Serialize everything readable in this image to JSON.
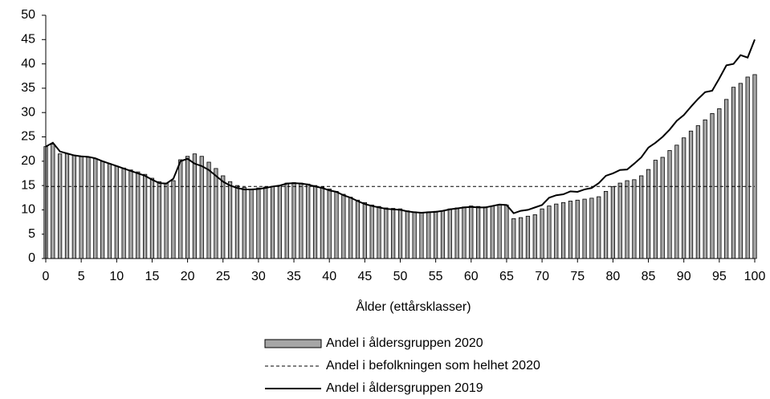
{
  "chart_data": {
    "type": "bar",
    "x_label": "Ålder (ettårsklasser)",
    "x": [
      0,
      1,
      2,
      3,
      4,
      5,
      6,
      7,
      8,
      9,
      10,
      11,
      12,
      13,
      14,
      15,
      16,
      17,
      18,
      19,
      20,
      21,
      22,
      23,
      24,
      25,
      26,
      27,
      28,
      29,
      30,
      31,
      32,
      33,
      34,
      35,
      36,
      37,
      38,
      39,
      40,
      41,
      42,
      43,
      44,
      45,
      46,
      47,
      48,
      49,
      50,
      51,
      52,
      53,
      54,
      55,
      56,
      57,
      58,
      59,
      60,
      61,
      62,
      63,
      64,
      65,
      66,
      67,
      68,
      69,
      70,
      71,
      72,
      73,
      74,
      75,
      76,
      77,
      78,
      79,
      80,
      81,
      82,
      83,
      84,
      85,
      86,
      87,
      88,
      89,
      90,
      91,
      92,
      93,
      94,
      95,
      96,
      97,
      98,
      99,
      100
    ],
    "series": [
      {
        "name": "Andel i åldersgruppen 2020",
        "kind": "bar",
        "color": "#a6a6a6",
        "values": [
          23.0,
          23.5,
          21.5,
          21.5,
          21.2,
          21.0,
          20.8,
          20.5,
          20.0,
          19.5,
          19.0,
          18.6,
          18.2,
          17.8,
          17.3,
          16.5,
          15.8,
          15.5,
          16.0,
          20.3,
          21.0,
          21.5,
          21.0,
          19.8,
          18.5,
          17.0,
          15.8,
          15.0,
          14.6,
          14.3,
          14.5,
          14.7,
          14.8,
          15.0,
          15.5,
          15.6,
          15.5,
          15.3,
          15.0,
          14.7,
          14.3,
          13.8,
          13.2,
          12.6,
          12.0,
          11.5,
          11.0,
          10.7,
          10.4,
          10.3,
          10.2,
          9.8,
          9.6,
          9.5,
          9.6,
          9.7,
          9.8,
          10.2,
          10.4,
          10.6,
          10.8,
          10.7,
          10.6,
          10.8,
          11.0,
          11.0,
          8.2,
          8.4,
          8.7,
          9.0,
          10.2,
          10.8,
          11.2,
          11.5,
          11.8,
          12.0,
          12.2,
          12.4,
          12.7,
          13.8,
          14.8,
          15.5,
          16.0,
          16.2,
          17.0,
          18.3,
          20.2,
          20.8,
          22.2,
          23.3,
          24.8,
          26.2,
          27.3,
          28.5,
          29.8,
          30.8,
          32.7,
          35.2,
          36.0,
          37.3,
          37.8
        ]
      },
      {
        "name": "Andel i befolkningen som helhet 2020",
        "kind": "reference",
        "color": "#000000",
        "dashed": true,
        "value": 14.8
      },
      {
        "name": "Andel i åldersgruppen 2019",
        "kind": "line",
        "color": "#000000",
        "values": [
          23.0,
          23.8,
          22.0,
          21.6,
          21.2,
          21.0,
          20.9,
          20.6,
          20.0,
          19.5,
          19.0,
          18.5,
          18.0,
          17.5,
          17.0,
          16.2,
          15.5,
          15.4,
          16.4,
          20.0,
          20.5,
          19.5,
          19.0,
          18.2,
          17.0,
          15.8,
          15.0,
          14.5,
          14.2,
          14.2,
          14.3,
          14.5,
          14.8,
          15.0,
          15.4,
          15.5,
          15.4,
          15.2,
          14.8,
          14.5,
          14.0,
          13.7,
          13.0,
          12.5,
          11.8,
          11.2,
          10.8,
          10.5,
          10.2,
          10.1,
          10.0,
          9.7,
          9.5,
          9.4,
          9.5,
          9.6,
          9.8,
          10.1,
          10.3,
          10.5,
          10.6,
          10.5,
          10.5,
          10.8,
          11.1,
          11.0,
          9.3,
          9.8,
          10.0,
          10.5,
          11.0,
          12.5,
          13.0,
          13.2,
          13.8,
          13.7,
          14.2,
          14.5,
          15.5,
          17.0,
          17.5,
          18.2,
          18.3,
          19.5,
          20.8,
          22.8,
          23.8,
          25.0,
          26.5,
          28.3,
          29.5,
          31.2,
          32.8,
          34.2,
          34.5,
          37.0,
          39.7,
          40.0,
          41.8,
          41.3,
          45.0
        ]
      }
    ],
    "xlim": [
      0,
      100
    ],
    "xticks": [
      0,
      5,
      10,
      15,
      20,
      25,
      30,
      35,
      40,
      45,
      50,
      55,
      60,
      65,
      70,
      75,
      80,
      85,
      90,
      95,
      100
    ],
    "ylim": [
      0,
      50
    ],
    "yticks": [
      0,
      5,
      10,
      15,
      20,
      25,
      30,
      35,
      40,
      45,
      50
    ]
  }
}
